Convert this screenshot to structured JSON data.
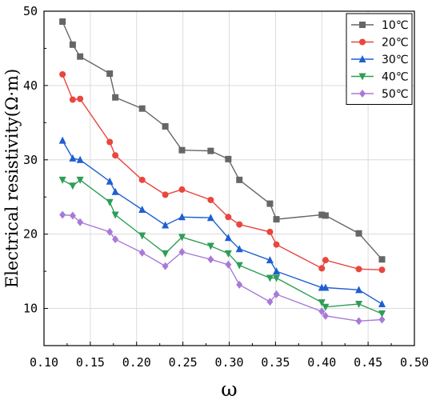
{
  "chart_data": {
    "type": "line",
    "xlabel": "ω",
    "ylabel": "Electrical resistivity(Ω·m)",
    "xlim": [
      0.1,
      0.5
    ],
    "ylim": [
      5,
      50
    ],
    "xticks": [
      0.1,
      0.15,
      0.2,
      0.25,
      0.3,
      0.35,
      0.4,
      0.45,
      0.5
    ],
    "xtick_labels": [
      "0.10",
      "0.15",
      "0.20",
      "0.25",
      "0.30",
      "0.35",
      "0.40",
      "0.45",
      "0.50"
    ],
    "yticks": [
      10,
      20,
      30,
      40,
      50
    ],
    "ytick_labels": [
      "10",
      "20",
      "30",
      "40",
      "50"
    ],
    "grid": true,
    "legend_position": "top-right",
    "series": [
      {
        "name": "10℃",
        "color": "#666666",
        "marker": "square",
        "x": [
          0.12,
          0.131,
          0.139,
          0.171,
          0.177,
          0.206,
          0.231,
          0.249,
          0.28,
          0.299,
          0.311,
          0.344,
          0.351,
          0.4,
          0.404,
          0.44,
          0.465
        ],
        "y": [
          48.6,
          45.5,
          43.9,
          41.6,
          38.4,
          36.9,
          34.5,
          31.3,
          31.2,
          30.1,
          27.3,
          24.1,
          22.0,
          22.6,
          22.5,
          20.1,
          16.6
        ]
      },
      {
        "name": "20℃",
        "color": "#e8463e",
        "marker": "circle",
        "x": [
          0.12,
          0.131,
          0.139,
          0.171,
          0.177,
          0.206,
          0.231,
          0.249,
          0.28,
          0.299,
          0.311,
          0.344,
          0.351,
          0.4,
          0.404,
          0.44,
          0.465
        ],
        "y": [
          41.5,
          38.1,
          38.2,
          32.4,
          30.6,
          27.3,
          25.3,
          26.0,
          24.6,
          22.3,
          21.3,
          20.3,
          18.6,
          15.4,
          16.5,
          15.3,
          15.2
        ]
      },
      {
        "name": "30℃",
        "color": "#1f5fd0",
        "marker": "triangle-up",
        "x": [
          0.12,
          0.131,
          0.139,
          0.171,
          0.177,
          0.206,
          0.231,
          0.249,
          0.28,
          0.299,
          0.311,
          0.344,
          0.351,
          0.4,
          0.404,
          0.44,
          0.465
        ],
        "y": [
          32.6,
          30.2,
          30.0,
          27.1,
          25.7,
          23.3,
          21.2,
          22.3,
          22.2,
          19.5,
          18.0,
          16.5,
          15.0,
          12.8,
          12.8,
          12.5,
          10.6
        ]
      },
      {
        "name": "40℃",
        "color": "#2e9e57",
        "marker": "triangle-down",
        "x": [
          0.12,
          0.131,
          0.139,
          0.171,
          0.177,
          0.206,
          0.231,
          0.249,
          0.28,
          0.299,
          0.311,
          0.344,
          0.351,
          0.4,
          0.404,
          0.44,
          0.465
        ],
        "y": [
          27.3,
          26.5,
          27.3,
          24.3,
          22.6,
          19.8,
          17.4,
          19.6,
          18.4,
          17.4,
          15.8,
          14.1,
          14.1,
          10.8,
          10.2,
          10.6,
          9.3
        ]
      },
      {
        "name": "50℃",
        "color": "#a87ad8",
        "marker": "diamond",
        "x": [
          0.12,
          0.131,
          0.139,
          0.171,
          0.177,
          0.206,
          0.231,
          0.249,
          0.28,
          0.299,
          0.311,
          0.344,
          0.351,
          0.4,
          0.404,
          0.44,
          0.465
        ],
        "y": [
          22.6,
          22.5,
          21.6,
          20.3,
          19.3,
          17.5,
          15.7,
          17.6,
          16.6,
          15.9,
          13.2,
          10.9,
          11.9,
          9.6,
          9.0,
          8.3,
          8.5
        ]
      }
    ]
  }
}
